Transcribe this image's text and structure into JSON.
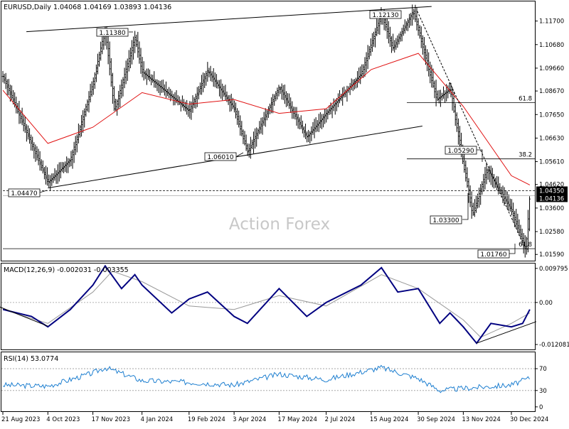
{
  "chart_data": [
    {
      "type": "candlestick",
      "title": "EURUSD,Daily",
      "ohlc_text": "1.04068 1.04169 1.03893 1.04136",
      "watermark": "Action Forex",
      "yticks": [
        "1.11700",
        "1.10680",
        "1.09660",
        "1.08670",
        "1.07650",
        "1.06630",
        "1.05610",
        "1.04620",
        "1.03600",
        "1.02580",
        "1.01590"
      ],
      "ytick_values": [
        1.117,
        1.1068,
        1.0966,
        1.0867,
        1.0765,
        1.0663,
        1.0561,
        1.0462,
        1.036,
        1.0258,
        1.0159
      ],
      "ylim": [
        1.0132,
        1.1255
      ],
      "xticks": [
        "21 Aug 2023",
        "4 Oct 2023",
        "17 Nov 2023",
        "4 Jan 2024",
        "19 Feb 2024",
        "3 Apr 2024",
        "17 May 2024",
        "2 Jul 2024",
        "15 Aug 2024",
        "30 Sep 2024",
        "13 Nov 2024",
        "30 Dec 2024"
      ],
      "current_price": "1.04136",
      "ref_price": "1.04350",
      "price_series": [
        {
          "date": "21 Aug 2023",
          "close": 1.093
        },
        {
          "date": "4 Oct 2023",
          "close": 1.047
        },
        {
          "date": "26 Oct 2023",
          "close": 1.057
        },
        {
          "date": "17 Nov 2023",
          "close": 1.09
        },
        {
          "date": "29 Nov 2023",
          "close": 1.1138
        },
        {
          "date": "8 Dec 2023",
          "close": 1.078
        },
        {
          "date": "28 Dec 2023",
          "close": 1.11
        },
        {
          "date": "4 Jan 2024",
          "close": 1.095
        },
        {
          "date": "19 Feb 2024",
          "close": 1.078
        },
        {
          "date": "8 Mar 2024",
          "close": 1.0955
        },
        {
          "date": "3 Apr 2024",
          "close": 1.079
        },
        {
          "date": "16 Apr 2024",
          "close": 1.0601
        },
        {
          "date": "17 May 2024",
          "close": 1.0885
        },
        {
          "date": "13 Jun 2024",
          "close": 1.0667
        },
        {
          "date": "2 Jul 2024",
          "close": 1.077
        },
        {
          "date": "5 Aug 2024",
          "close": 1.094
        },
        {
          "date": "25 Aug 2024",
          "close": 1.1201
        },
        {
          "date": "5 Sep 2024",
          "close": 1.105
        },
        {
          "date": "25 Sep 2024",
          "close": 1.1213
        },
        {
          "date": "30 Sep 2024",
          "close": 1.113
        },
        {
          "date": "18 Oct 2024",
          "close": 1.083
        },
        {
          "date": "31 Oct 2024",
          "close": 1.0875
        },
        {
          "date": "13 Nov 2024",
          "close": 1.055
        },
        {
          "date": "22 Nov 2024",
          "close": 1.033
        },
        {
          "date": "6 Dec 2024",
          "close": 1.0529
        },
        {
          "date": "30 Dec 2024",
          "close": 1.035
        },
        {
          "date": "13 Jan 2025",
          "close": 1.0176
        },
        {
          "date": "17 Jan 2025",
          "close": 1.0414
        }
      ],
      "ma_series": [
        {
          "date": "21 Aug 2023",
          "value": 1.087
        },
        {
          "date": "4 Oct 2023",
          "value": 1.064
        },
        {
          "date": "17 Nov 2023",
          "value": 1.071
        },
        {
          "date": "4 Jan 2024",
          "value": 1.086
        },
        {
          "date": "19 Feb 2024",
          "value": 1.081
        },
        {
          "date": "3 Apr 2024",
          "value": 1.083
        },
        {
          "date": "17 May 2024",
          "value": 1.077
        },
        {
          "date": "2 Jul 2024",
          "value": 1.079
        },
        {
          "date": "15 Aug 2024",
          "value": 1.096
        },
        {
          "date": "30 Sep 2024",
          "value": 1.103
        },
        {
          "date": "13 Nov 2024",
          "value": 1.08
        },
        {
          "date": "30 Dec 2024",
          "value": 1.05
        },
        {
          "date": "17 Jan 2025",
          "value": 1.046
        }
      ],
      "level_labels": [
        {
          "text": "1.11380",
          "value": 1.1138
        },
        {
          "text": "1.12130",
          "value": 1.1213
        },
        {
          "text": "1.06010",
          "value": 1.0601
        },
        {
          "text": "1.04470",
          "value": 1.0447
        },
        {
          "text": "1.05290",
          "value": 1.0529
        },
        {
          "text": "1.03300",
          "value": 1.033
        },
        {
          "text": "1.01760",
          "value": 1.0176
        }
      ],
      "fib_levels": [
        {
          "label": "61.8",
          "value": 1.0817
        },
        {
          "label": "38.2",
          "value": 1.0573
        },
        {
          "label": "61.8",
          "value": 1.0184
        }
      ]
    },
    {
      "type": "line",
      "title": "MACD(12,26,9) -0.002031 -0.003355",
      "yticks": [
        "0.009795",
        "0.00",
        "-0.012081"
      ],
      "ytick_values": [
        0.009795,
        0.0,
        -0.012081
      ],
      "ylim": [
        -0.0135,
        0.0112
      ],
      "macd": [
        {
          "date": "21 Aug 2023",
          "value": -0.002
        },
        {
          "date": "18 Sep 2023",
          "value": -0.004
        },
        {
          "date": "4 Oct 2023",
          "value": -0.007
        },
        {
          "date": "26 Oct 2023",
          "value": -0.002
        },
        {
          "date": "17 Nov 2023",
          "value": 0.005
        },
        {
          "date": "29 Nov 2023",
          "value": 0.0105
        },
        {
          "date": "15 Dec 2023",
          "value": 0.004
        },
        {
          "date": "28 Dec 2023",
          "value": 0.008
        },
        {
          "date": "4 Jan 2024",
          "value": 0.005
        },
        {
          "date": "2 Feb 2024",
          "value": -0.003
        },
        {
          "date": "19 Feb 2024",
          "value": 0.001
        },
        {
          "date": "8 Mar 2024",
          "value": 0.003
        },
        {
          "date": "3 Apr 2024",
          "value": -0.004
        },
        {
          "date": "16 Apr 2024",
          "value": -0.006
        },
        {
          "date": "17 May 2024",
          "value": 0.004
        },
        {
          "date": "13 Jun 2024",
          "value": -0.004
        },
        {
          "date": "2 Jul 2024",
          "value": 0.0
        },
        {
          "date": "5 Aug 2024",
          "value": 0.005
        },
        {
          "date": "25 Aug 2024",
          "value": 0.01
        },
        {
          "date": "10 Sep 2024",
          "value": 0.003
        },
        {
          "date": "30 Sep 2024",
          "value": 0.004
        },
        {
          "date": "21 Oct 2024",
          "value": -0.006
        },
        {
          "date": "31 Oct 2024",
          "value": -0.003
        },
        {
          "date": "13 Nov 2024",
          "value": -0.007
        },
        {
          "date": "26 Nov 2024",
          "value": -0.0117
        },
        {
          "date": "10 Dec 2024",
          "value": -0.006
        },
        {
          "date": "30 Dec 2024",
          "value": -0.007
        },
        {
          "date": "10 Jan 2025",
          "value": -0.006
        },
        {
          "date": "17 Jan 2025",
          "value": -0.002
        }
      ],
      "signal": [
        {
          "date": "21 Aug 2023",
          "value": -0.002
        },
        {
          "date": "4 Oct 2023",
          "value": -0.006
        },
        {
          "date": "17 Nov 2023",
          "value": 0.003
        },
        {
          "date": "6 Dec 2023",
          "value": 0.009
        },
        {
          "date": "4 Jan 2024",
          "value": 0.006
        },
        {
          "date": "19 Feb 2024",
          "value": -0.001
        },
        {
          "date": "3 Apr 2024",
          "value": -0.002
        },
        {
          "date": "17 May 2024",
          "value": 0.002
        },
        {
          "date": "2 Jul 2024",
          "value": -0.001
        },
        {
          "date": "25 Aug 2024",
          "value": 0.008
        },
        {
          "date": "30 Sep 2024",
          "value": 0.004
        },
        {
          "date": "13 Nov 2024",
          "value": -0.005
        },
        {
          "date": "30 Nov 2024",
          "value": -0.01
        },
        {
          "date": "30 Dec 2024",
          "value": -0.006
        },
        {
          "date": "17 Jan 2025",
          "value": -0.003
        }
      ]
    },
    {
      "type": "line",
      "title": "RSI(14) 53.0774",
      "yticks": [
        "70",
        "30",
        "0"
      ],
      "ytick_values": [
        70,
        30,
        0
      ],
      "ylim": [
        -8,
        100
      ],
      "rsi": [
        {
          "date": "21 Aug 2023",
          "value": 40
        },
        {
          "date": "4 Oct 2023",
          "value": 38
        },
        {
          "date": "17 Nov 2023",
          "value": 62
        },
        {
          "date": "29 Nov 2023",
          "value": 72
        },
        {
          "date": "4 Jan 2024",
          "value": 48
        },
        {
          "date": "19 Feb 2024",
          "value": 45
        },
        {
          "date": "3 Apr 2024",
          "value": 40
        },
        {
          "date": "17 May 2024",
          "value": 60
        },
        {
          "date": "2 Jul 2024",
          "value": 50
        },
        {
          "date": "25 Aug 2024",
          "value": 72
        },
        {
          "date": "30 Sep 2024",
          "value": 52
        },
        {
          "date": "21 Oct 2024",
          "value": 30
        },
        {
          "date": "13 Nov 2024",
          "value": 34
        },
        {
          "date": "30 Dec 2024",
          "value": 40
        },
        {
          "date": "17 Jan 2025",
          "value": 53
        }
      ]
    }
  ]
}
